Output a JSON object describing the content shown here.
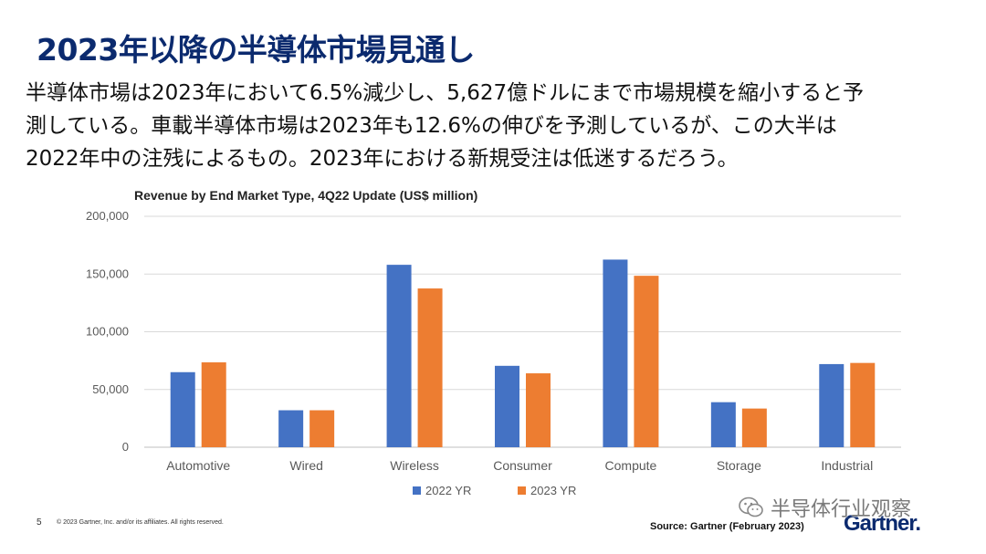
{
  "slide": {
    "title": "2023年以降の半導体市場見通し",
    "body_lines": [
      "半導体市場は2023年において6.5%減少し、5,627億ドルにまで市場規模を縮小すると予",
      "測している。車載半導体市場は2023年も12.6%の伸びを予測しているが、この大半は",
      "2022年中の注残によるもの。2023年における新規受注は低迷するだろう。"
    ]
  },
  "chart_data": {
    "type": "bar",
    "title": "Revenue by End Market Type, 4Q22 Update (US$ million)",
    "categories": [
      "Automotive",
      "Wired",
      "Wireless",
      "Consumer",
      "Compute",
      "Storage",
      "Industrial"
    ],
    "series": [
      {
        "name": "2022 YR",
        "color": "#4472c4",
        "values": [
          65000,
          32000,
          158000,
          70500,
          162500,
          39000,
          72000
        ]
      },
      {
        "name": "2023 YR",
        "color": "#ed7d31",
        "values": [
          73500,
          32000,
          137500,
          64000,
          148500,
          33500,
          73000
        ]
      }
    ],
    "ylim": [
      0,
      200000
    ],
    "yticks": [
      0,
      50000,
      100000,
      150000,
      200000
    ],
    "ytick_labels": [
      "0",
      "50,000",
      "100,000",
      "150,000",
      "200,000"
    ],
    "xlabel": "",
    "ylabel": "",
    "grid": true,
    "legend_position": "bottom"
  },
  "footer": {
    "page_number": "5",
    "copyright": "© 2023 Gartner, Inc. and/or its affiliates. All rights reserved.",
    "source": "Source: Gartner (February 2023)",
    "brand": "Gartner.",
    "watermark": "半导体行业观察"
  },
  "icons": {
    "watermark": "wechat-icon"
  }
}
